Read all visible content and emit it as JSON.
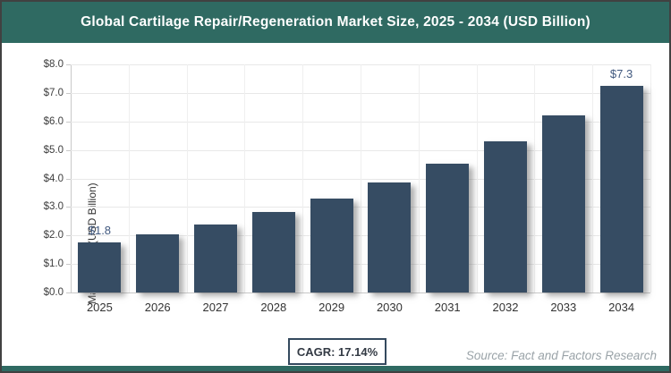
{
  "header": {
    "title": "Global Cartilage Repair/Regeneration Market Size, 2025 - 2034 (USD Billion)"
  },
  "chart_data": {
    "type": "bar",
    "title": "Global Cartilage Repair/Regeneration Market Size, 2025 - 2034 (USD Billion)",
    "categories": [
      "2025",
      "2026",
      "2027",
      "2028",
      "2029",
      "2030",
      "2031",
      "2032",
      "2033",
      "2034"
    ],
    "values": [
      1.75,
      2.05,
      2.4,
      2.81,
      3.29,
      3.86,
      4.52,
      5.29,
      6.2,
      7.26
    ],
    "bar_labels": [
      "$1.8",
      null,
      null,
      null,
      null,
      null,
      null,
      null,
      null,
      "$7.3"
    ],
    "xlabel": "",
    "ylabel": "Market Size (USD Billion)",
    "ylim": [
      0,
      8
    ],
    "ytick_step": 1,
    "ytick_format": {
      "prefix": "$",
      "decimals": 1
    },
    "grid": true,
    "legend": "none",
    "bar_color": "#364C63",
    "bar_label_color": "#41597F"
  },
  "footer": {
    "cagr_label": "CAGR: 17.14%",
    "source": "Source: Fact and Factors Research"
  },
  "colors": {
    "accent_teal": "#2F6A62",
    "bar_navy": "#364C63",
    "cagr_border_navy": "#34495E",
    "source_gray": "#9AA3A8"
  }
}
